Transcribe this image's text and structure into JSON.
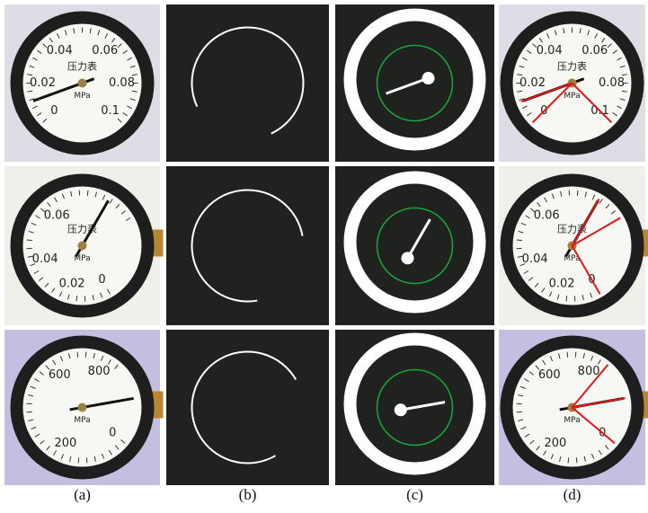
{
  "captions": [
    "(a)",
    "(b)",
    "(c)",
    "(d)"
  ],
  "gauges": [
    {
      "labels": [
        "0",
        "0.02",
        "0.04",
        "0.06",
        "0.08",
        "0.1"
      ],
      "title": "压力表",
      "unit": "MPa"
    },
    {
      "labels": [
        "0",
        "0.02",
        "0.04",
        "0.06"
      ],
      "title": "压力表",
      "unit": "MPa"
    },
    {
      "labels": [
        "0",
        "200",
        "600",
        "800"
      ],
      "unit": "MPa"
    }
  ]
}
